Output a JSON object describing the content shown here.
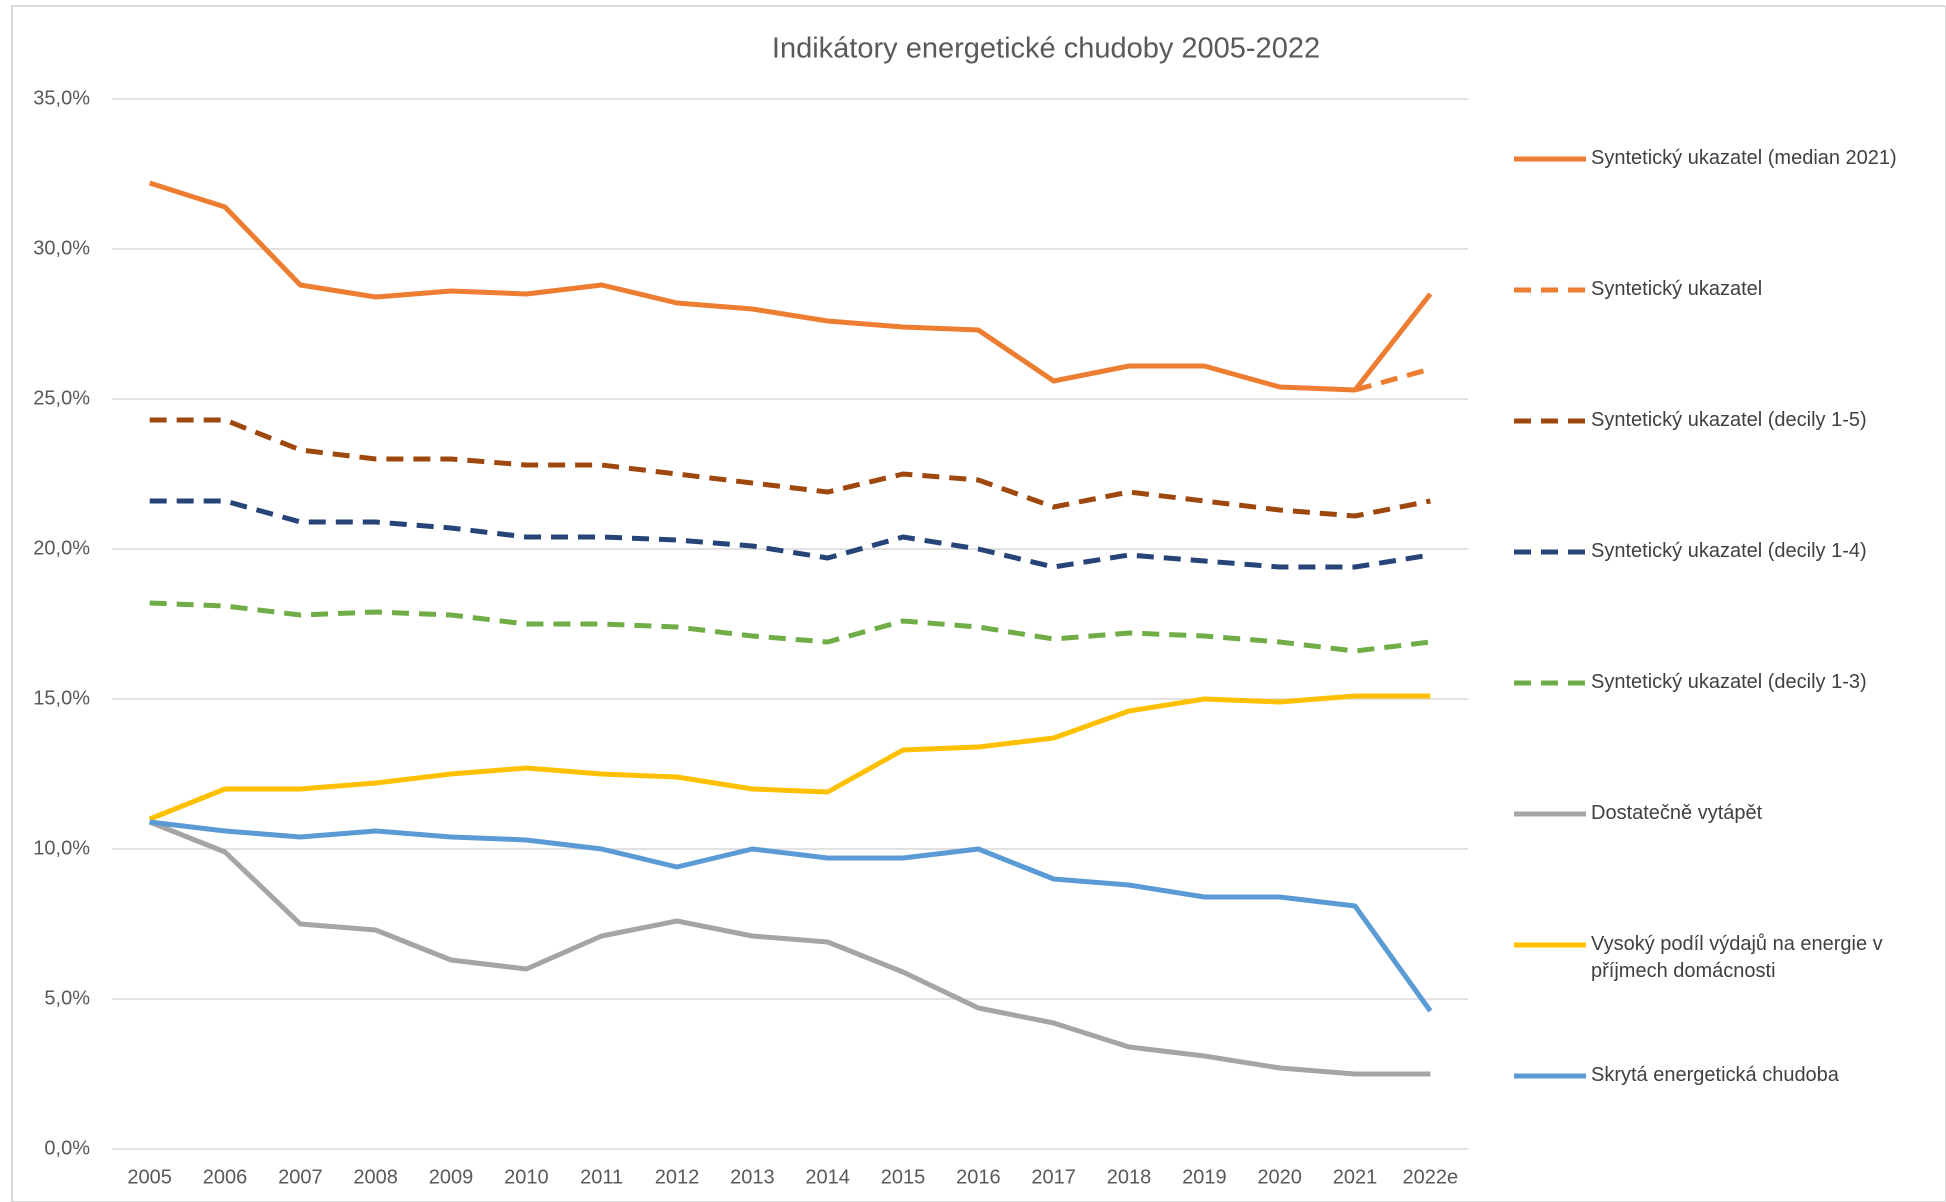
{
  "chart_data": {
    "type": "line",
    "title": "Indikátory energetické chudoby 2005-2022",
    "categories": [
      "2005",
      "2006",
      "2007",
      "2008",
      "2009",
      "2010",
      "2011",
      "2012",
      "2013",
      "2014",
      "2015",
      "2016",
      "2017",
      "2018",
      "2019",
      "2020",
      "2021",
      "2022e"
    ],
    "ylim": [
      0,
      35
    ],
    "yticks": [
      {
        "value": 0,
        "label": "0,0%"
      },
      {
        "value": 5,
        "label": "5,0%"
      },
      {
        "value": 10,
        "label": "10,0%"
      },
      {
        "value": 15,
        "label": "15,0%"
      },
      {
        "value": 20,
        "label": "20,0%"
      },
      {
        "value": 25,
        "label": "25,0%"
      },
      {
        "value": 30,
        "label": "30,0%"
      },
      {
        "value": 35,
        "label": "35,0%"
      }
    ],
    "grid": true,
    "legend": "right",
    "series": [
      {
        "name": "Syntetický ukazatel (median 2021)",
        "color": "#ED7D31",
        "dashed": false,
        "values": [
          32.2,
          31.4,
          28.8,
          28.4,
          28.6,
          28.5,
          28.8,
          28.2,
          28.0,
          27.6,
          27.4,
          27.3,
          25.6,
          26.1,
          26.1,
          25.4,
          25.3,
          28.5
        ]
      },
      {
        "name": "Syntetický ukazatel",
        "color": "#ED7D31",
        "dashed": true,
        "values": [
          null,
          null,
          null,
          null,
          null,
          null,
          null,
          null,
          null,
          null,
          null,
          null,
          null,
          null,
          null,
          null,
          25.3,
          26.0
        ]
      },
      {
        "name": "Syntetický ukazatel (decily 1-5)",
        "color": "#9E480E",
        "dashed": true,
        "values": [
          24.3,
          24.3,
          23.3,
          23.0,
          23.0,
          22.8,
          22.8,
          22.5,
          22.2,
          21.9,
          22.5,
          22.3,
          21.4,
          21.9,
          21.6,
          21.3,
          21.1,
          21.6
        ]
      },
      {
        "name": "Syntetický ukazatel (decily 1-4)",
        "color": "#264478",
        "dashed": true,
        "values": [
          21.6,
          21.6,
          20.9,
          20.9,
          20.7,
          20.4,
          20.4,
          20.3,
          20.1,
          19.7,
          20.4,
          20.0,
          19.4,
          19.8,
          19.6,
          19.4,
          19.4,
          19.8
        ]
      },
      {
        "name": "Syntetický ukazatel (decily 1-3)",
        "color": "#70AD47",
        "dashed": true,
        "values": [
          18.2,
          18.1,
          17.8,
          17.9,
          17.8,
          17.5,
          17.5,
          17.4,
          17.1,
          16.9,
          17.6,
          17.4,
          17.0,
          17.2,
          17.1,
          16.9,
          16.6,
          16.9
        ]
      },
      {
        "name": "Dostatečně vytápět",
        "color": "#A5A5A5",
        "dashed": false,
        "values": [
          10.9,
          9.9,
          7.5,
          7.3,
          6.3,
          6.0,
          7.1,
          7.6,
          7.1,
          6.9,
          5.9,
          4.7,
          4.2,
          3.4,
          3.1,
          2.7,
          2.5,
          2.5
        ]
      },
      {
        "name": "Vysoký podíl výdajů na energie v příjmech domácnosti",
        "color": "#FFC000",
        "dashed": false,
        "values": [
          11.0,
          12.0,
          12.0,
          12.2,
          12.5,
          12.7,
          12.5,
          12.4,
          12.0,
          11.9,
          13.3,
          13.4,
          13.7,
          14.6,
          15.0,
          14.9,
          15.1,
          15.1
        ]
      },
      {
        "name": "Skrytá energetická chudoba",
        "color": "#5B9BD5",
        "dashed": false,
        "values": [
          10.9,
          10.6,
          10.4,
          10.6,
          10.4,
          10.3,
          10.0,
          9.4,
          10.0,
          9.7,
          9.7,
          10.0,
          9.0,
          8.8,
          8.4,
          8.4,
          8.1,
          4.6
        ]
      }
    ]
  }
}
